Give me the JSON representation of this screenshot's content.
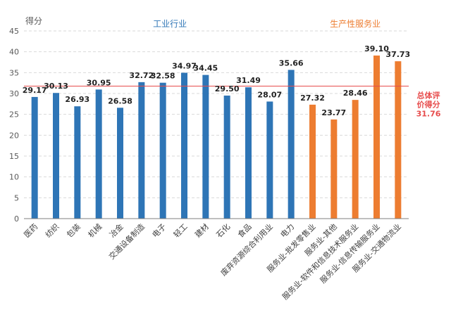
{
  "chart_data": {
    "type": "bar",
    "ylabel": "得分",
    "ylim": [
      0,
      45
    ],
    "yticks": [
      0,
      5,
      10,
      15,
      20,
      25,
      30,
      35,
      40,
      45
    ],
    "grid": true,
    "groups": [
      {
        "label": "工业行业",
        "color": "#2e75b6"
      },
      {
        "label": "生产性服务业",
        "color": "#ed7d31"
      }
    ],
    "categories": [
      "医药",
      "纺织",
      "包装",
      "机械",
      "冶金",
      "交通设备制造",
      "电子",
      "轻工",
      "建材",
      "石化",
      "食品",
      "废弃资源综合利用业",
      "电力",
      "服务业-批发零售业",
      "服务业-其他",
      "服务业-软件和信息技术服务业",
      "服务业-信息传输服务业",
      "服务业-交通物流业"
    ],
    "values": [
      29.17,
      30.13,
      26.93,
      30.95,
      26.58,
      32.72,
      32.58,
      34.97,
      34.45,
      29.5,
      31.49,
      28.07,
      35.66,
      27.32,
      23.77,
      28.46,
      39.1,
      37.73
    ],
    "value_labels": [
      "29.17",
      "30.13",
      "26.93",
      "30.95",
      "26.58",
      "32.72",
      "32.58",
      "34.97",
      "34.45",
      "29.50",
      "31.49",
      "28.07",
      "35.66",
      "27.32",
      "23.77",
      "28.46",
      "39.10",
      "37.73"
    ],
    "bar_group": [
      0,
      0,
      0,
      0,
      0,
      0,
      0,
      0,
      0,
      0,
      0,
      0,
      0,
      1,
      1,
      1,
      1,
      1
    ],
    "reference_line": {
      "value": 31.76,
      "label_lines": [
        "总体评",
        "价得分",
        "31.76"
      ],
      "color": "#e74c4c"
    }
  }
}
